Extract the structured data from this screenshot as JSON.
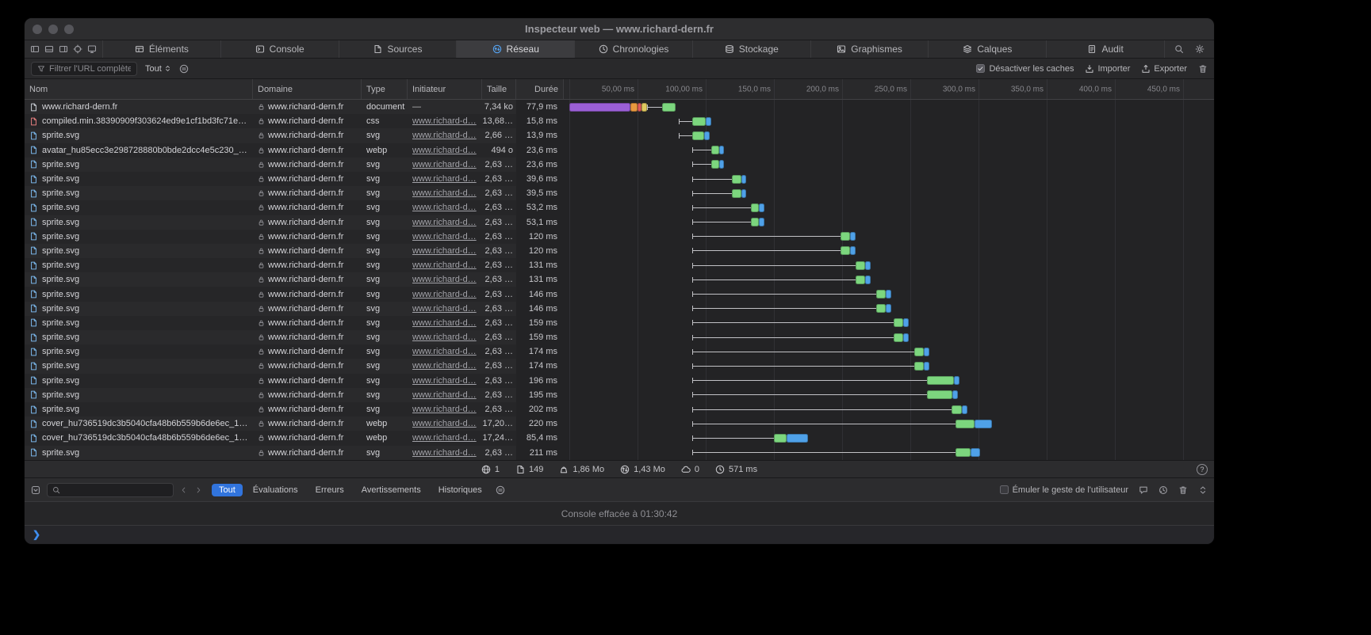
{
  "window": {
    "title": "Inspecteur web — www.richard-dern.fr"
  },
  "tabbar": {
    "active": "Réseau",
    "tabs": [
      {
        "icon": "elements",
        "label": "Éléments"
      },
      {
        "icon": "console",
        "label": "Console"
      },
      {
        "icon": "sources",
        "label": "Sources"
      },
      {
        "icon": "network",
        "label": "Réseau"
      },
      {
        "icon": "timelines",
        "label": "Chronologies"
      },
      {
        "icon": "storage",
        "label": "Stockage"
      },
      {
        "icon": "graphics",
        "label": "Graphismes"
      },
      {
        "icon": "layers",
        "label": "Calques"
      },
      {
        "icon": "audit",
        "label": "Audit"
      }
    ]
  },
  "filterbar": {
    "filter_placeholder": "Filtrer l'URL complète",
    "type_filter": "Tout",
    "disable_caches": "Désactiver les caches",
    "disable_caches_checked": true,
    "import": "Importer",
    "export": "Exporter"
  },
  "table": {
    "columns": [
      "Nom",
      "Domaine",
      "Type",
      "Initiateur",
      "Taille",
      "Durée"
    ],
    "time_ticks": [
      "50,00 ms",
      "100,00 ms",
      "150,0 ms",
      "200,0 ms",
      "250,0 ms",
      "300,0 ms",
      "350,0 ms",
      "400,0 ms",
      "450,0 ms"
    ],
    "rows": [
      {
        "name": "www.richard-dern.fr",
        "type": "document",
        "domain": "www.richard-dern.fr",
        "initiator": "—",
        "size": "7,34 ko",
        "duration": "77,9 ms",
        "bar": {
          "line": [
            57,
            68
          ],
          "blocks": [
            [
              0,
              45,
              "purple"
            ],
            [
              45,
              50,
              "orange"
            ],
            [
              50,
              53,
              "red"
            ],
            [
              53,
              57,
              "yellow"
            ],
            [
              68,
              78,
              "green"
            ]
          ]
        }
      },
      {
        "name": "compiled.min.38390909f303624ed9e1cf1bd3fc71e…",
        "type": "css",
        "domain": "www.richard-dern.fr",
        "initiator": "www.richard-d…",
        "size": "13,68…",
        "duration": "15,8 ms",
        "bar": {
          "line": [
            80,
            90
          ],
          "blocks": [
            [
              90,
              100,
              "green"
            ],
            [
              100,
              104,
              "blue"
            ]
          ]
        }
      },
      {
        "name": "sprite.svg",
        "type": "svg",
        "domain": "www.richard-dern.fr",
        "initiator": "www.richard-d…",
        "size": "2,66 …",
        "duration": "13,9 ms",
        "bar": {
          "line": [
            80,
            90
          ],
          "blocks": [
            [
              90,
              99,
              "green"
            ],
            [
              99,
              103,
              "blue"
            ]
          ]
        }
      },
      {
        "name": "avatar_hu85ecc3e298728880b0bde2dcc4e5c230_…",
        "type": "webp",
        "domain": "www.richard-dern.fr",
        "initiator": "www.richard-d…",
        "size": "494 o",
        "duration": "23,6 ms",
        "bar": {
          "line": [
            90,
            104
          ],
          "blocks": [
            [
              104,
              110,
              "green"
            ],
            [
              110,
              113.5,
              "blue"
            ]
          ]
        }
      },
      {
        "name": "sprite.svg",
        "type": "svg",
        "domain": "www.richard-dern.fr",
        "initiator": "www.richard-d…",
        "size": "2,63 …",
        "duration": "23,6 ms",
        "bar": {
          "line": [
            90,
            104
          ],
          "blocks": [
            [
              104,
              110,
              "green"
            ],
            [
              110,
              113.5,
              "blue"
            ]
          ]
        }
      },
      {
        "name": "sprite.svg",
        "type": "svg",
        "domain": "www.richard-dern.fr",
        "initiator": "www.richard-d…",
        "size": "2,63 …",
        "duration": "39,6 ms",
        "bar": {
          "line": [
            90,
            119
          ],
          "blocks": [
            [
              119,
              126,
              "green"
            ],
            [
              126,
              129.5,
              "blue"
            ]
          ]
        }
      },
      {
        "name": "sprite.svg",
        "type": "svg",
        "domain": "www.richard-dern.fr",
        "initiator": "www.richard-d…",
        "size": "2,63 …",
        "duration": "39,5 ms",
        "bar": {
          "line": [
            90,
            119
          ],
          "blocks": [
            [
              119,
              126,
              "green"
            ],
            [
              126,
              129.5,
              "blue"
            ]
          ]
        }
      },
      {
        "name": "sprite.svg",
        "type": "svg",
        "domain": "www.richard-dern.fr",
        "initiator": "www.richard-d…",
        "size": "2,63 …",
        "duration": "53,2 ms",
        "bar": {
          "line": [
            90,
            133
          ],
          "blocks": [
            [
              133,
              139,
              "green"
            ],
            [
              139,
              143,
              "blue"
            ]
          ]
        }
      },
      {
        "name": "sprite.svg",
        "type": "svg",
        "domain": "www.richard-dern.fr",
        "initiator": "www.richard-d…",
        "size": "2,63 …",
        "duration": "53,1 ms",
        "bar": {
          "line": [
            90,
            133
          ],
          "blocks": [
            [
              133,
              139,
              "green"
            ],
            [
              139,
              143,
              "blue"
            ]
          ]
        }
      },
      {
        "name": "sprite.svg",
        "type": "svg",
        "domain": "www.richard-dern.fr",
        "initiator": "www.richard-d…",
        "size": "2,63 …",
        "duration": "120 ms",
        "bar": {
          "line": [
            90,
            199
          ],
          "blocks": [
            [
              199,
              206,
              "green"
            ],
            [
              206,
              210,
              "blue"
            ]
          ]
        }
      },
      {
        "name": "sprite.svg",
        "type": "svg",
        "domain": "www.richard-dern.fr",
        "initiator": "www.richard-d…",
        "size": "2,63 …",
        "duration": "120 ms",
        "bar": {
          "line": [
            90,
            199
          ],
          "blocks": [
            [
              199,
              206,
              "green"
            ],
            [
              206,
              210,
              "blue"
            ]
          ]
        }
      },
      {
        "name": "sprite.svg",
        "type": "svg",
        "domain": "www.richard-dern.fr",
        "initiator": "www.richard-d…",
        "size": "2,63 …",
        "duration": "131 ms",
        "bar": {
          "line": [
            90,
            210
          ],
          "blocks": [
            [
              210,
              217,
              "green"
            ],
            [
              217,
              221,
              "blue"
            ]
          ]
        }
      },
      {
        "name": "sprite.svg",
        "type": "svg",
        "domain": "www.richard-dern.fr",
        "initiator": "www.richard-d…",
        "size": "2,63 …",
        "duration": "131 ms",
        "bar": {
          "line": [
            90,
            210
          ],
          "blocks": [
            [
              210,
              217,
              "green"
            ],
            [
              217,
              221,
              "blue"
            ]
          ]
        }
      },
      {
        "name": "sprite.svg",
        "type": "svg",
        "domain": "www.richard-dern.fr",
        "initiator": "www.richard-d…",
        "size": "2,63 …",
        "duration": "146 ms",
        "bar": {
          "line": [
            90,
            225
          ],
          "blocks": [
            [
              225,
              232,
              "green"
            ],
            [
              232,
              236,
              "blue"
            ]
          ]
        }
      },
      {
        "name": "sprite.svg",
        "type": "svg",
        "domain": "www.richard-dern.fr",
        "initiator": "www.richard-d…",
        "size": "2,63 …",
        "duration": "146 ms",
        "bar": {
          "line": [
            90,
            225
          ],
          "blocks": [
            [
              225,
              232,
              "green"
            ],
            [
              232,
              236,
              "blue"
            ]
          ]
        }
      },
      {
        "name": "sprite.svg",
        "type": "svg",
        "domain": "www.richard-dern.fr",
        "initiator": "www.richard-d…",
        "size": "2,63 …",
        "duration": "159 ms",
        "bar": {
          "line": [
            90,
            238
          ],
          "blocks": [
            [
              238,
              245,
              "green"
            ],
            [
              245,
              249,
              "blue"
            ]
          ]
        }
      },
      {
        "name": "sprite.svg",
        "type": "svg",
        "domain": "www.richard-dern.fr",
        "initiator": "www.richard-d…",
        "size": "2,63 …",
        "duration": "159 ms",
        "bar": {
          "line": [
            90,
            238
          ],
          "blocks": [
            [
              238,
              245,
              "green"
            ],
            [
              245,
              249,
              "blue"
            ]
          ]
        }
      },
      {
        "name": "sprite.svg",
        "type": "svg",
        "domain": "www.richard-dern.fr",
        "initiator": "www.richard-d…",
        "size": "2,63 …",
        "duration": "174 ms",
        "bar": {
          "line": [
            90,
            253
          ],
          "blocks": [
            [
              253,
              260,
              "green"
            ],
            [
              260,
              264,
              "blue"
            ]
          ]
        }
      },
      {
        "name": "sprite.svg",
        "type": "svg",
        "domain": "www.richard-dern.fr",
        "initiator": "www.richard-d…",
        "size": "2,63 …",
        "duration": "174 ms",
        "bar": {
          "line": [
            90,
            253
          ],
          "blocks": [
            [
              253,
              260,
              "green"
            ],
            [
              260,
              264,
              "blue"
            ]
          ]
        }
      },
      {
        "name": "sprite.svg",
        "type": "svg",
        "domain": "www.richard-dern.fr",
        "initiator": "www.richard-d…",
        "size": "2,63 …",
        "duration": "196 ms",
        "bar": {
          "line": [
            90,
            262
          ],
          "blocks": [
            [
              262,
              282,
              "green"
            ],
            [
              282,
              286,
              "blue"
            ]
          ]
        }
      },
      {
        "name": "sprite.svg",
        "type": "svg",
        "domain": "www.richard-dern.fr",
        "initiator": "www.richard-d…",
        "size": "2,63 …",
        "duration": "195 ms",
        "bar": {
          "line": [
            90,
            262
          ],
          "blocks": [
            [
              262,
              281,
              "green"
            ],
            [
              281,
              285,
              "blue"
            ]
          ]
        }
      },
      {
        "name": "sprite.svg",
        "type": "svg",
        "domain": "www.richard-dern.fr",
        "initiator": "www.richard-d…",
        "size": "2,63 …",
        "duration": "202 ms",
        "bar": {
          "line": [
            90,
            280
          ],
          "blocks": [
            [
              280,
              288,
              "green"
            ],
            [
              288,
              292,
              "blue"
            ]
          ]
        }
      },
      {
        "name": "cover_hu736519dc3b5040cfa48b6b559b6de6ec_1…",
        "type": "webp",
        "domain": "www.richard-dern.fr",
        "initiator": "www.richard-d…",
        "size": "17,20…",
        "duration": "220 ms",
        "bar": {
          "line": [
            90,
            283
          ],
          "blocks": [
            [
              283,
              297,
              "green"
            ],
            [
              297,
              310,
              "blue"
            ]
          ]
        }
      },
      {
        "name": "cover_hu736519dc3b5040cfa48b6b559b6de6ec_1…",
        "type": "webp",
        "domain": "www.richard-dern.fr",
        "initiator": "www.richard-d…",
        "size": "17,24…",
        "duration": "85,4 ms",
        "bar": {
          "line": [
            90,
            150
          ],
          "blocks": [
            [
              150,
              159,
              "green"
            ],
            [
              159,
              175,
              "blue"
            ]
          ]
        }
      },
      {
        "name": "sprite.svg",
        "type": "svg",
        "domain": "www.richard-dern.fr",
        "initiator": "www.richard-d…",
        "size": "2,63 …",
        "duration": "211 ms",
        "bar": {
          "line": [
            90,
            283
          ],
          "blocks": [
            [
              283,
              294,
              "green"
            ],
            [
              294,
              301,
              "blue"
            ]
          ]
        }
      }
    ]
  },
  "waterfall_colors": {
    "purple": "#9b5fd6",
    "orange": "#e8993e",
    "red": "#e05b5b",
    "yellow": "#dfc95f",
    "green": "#7cd67e",
    "blue": "#4fa1e8"
  },
  "statusbar": {
    "items": [
      {
        "icon": "globe",
        "value": "1"
      },
      {
        "icon": "document",
        "value": "149"
      },
      {
        "icon": "weight",
        "value": "1,86 Mo"
      },
      {
        "icon": "transfer",
        "value": "1,43 Mo"
      },
      {
        "icon": "cloud",
        "value": "0"
      },
      {
        "icon": "clock",
        "value": "571 ms"
      }
    ],
    "help": "?"
  },
  "console": {
    "tabs": [
      "Tout",
      "Évaluations",
      "Erreurs",
      "Avertissements",
      "Historiques"
    ],
    "active_tab": "Tout",
    "emulate_label": "Émuler le geste de l'utilisateur",
    "emulate_checked": false,
    "message": "Console effacée à 01:30:42",
    "prompt": "❯"
  }
}
